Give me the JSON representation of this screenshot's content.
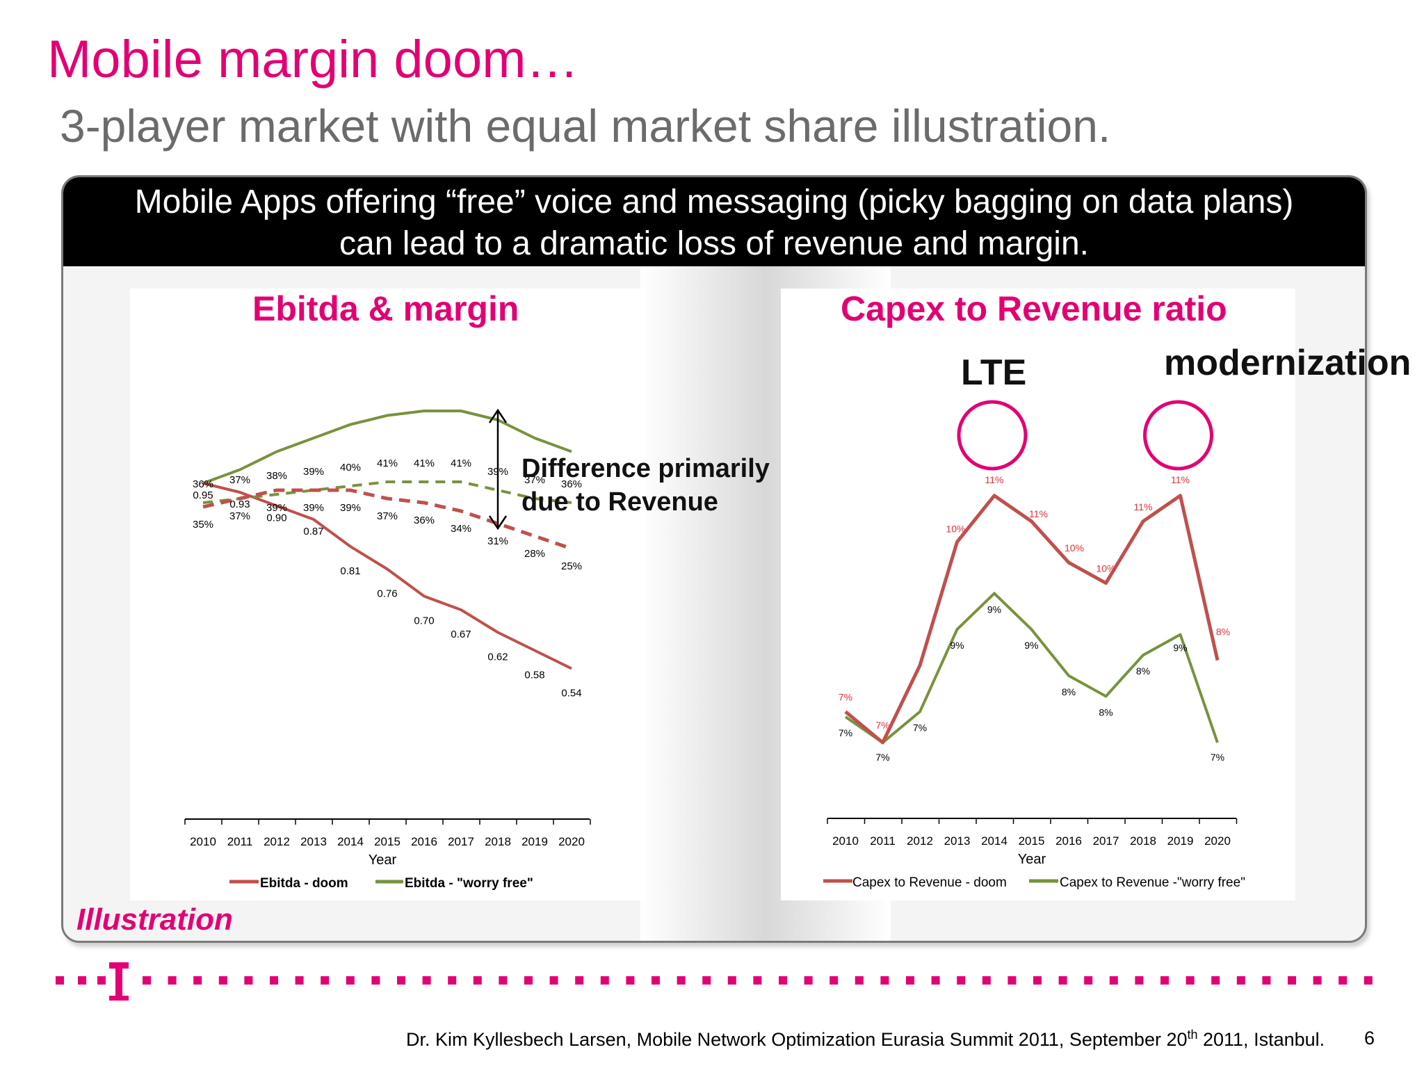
{
  "slide": {
    "title": "Mobile margin doom…",
    "subtitle": "3-player market with equal market share illustration.",
    "banner_line1": "Mobile Apps offering “free” voice and messaging (picky bagging on data plans)",
    "banner_line2": "can lead to a dramatic loss of revenue and margin.",
    "illustration_label": "Illustration",
    "footer": "Dr. Kim Kyllesbech Larsen, Mobile Network Optimization Eurasia Summit 2011, September 20th 2011, Istanbul.",
    "page_number": "6",
    "callout_line1": "Difference primarily",
    "callout_line2": "due to Revenue",
    "annotation_lte": "LTE",
    "annotation_modernization": "modernization",
    "brand_color": "#e20074"
  },
  "chart_data": [
    {
      "type": "line",
      "title": "Ebitda & margin",
      "xlabel": "Year",
      "x": [
        "2010",
        "2011",
        "2012",
        "2013",
        "2014",
        "2015",
        "2016",
        "2017",
        "2018",
        "2019",
        "2020"
      ],
      "series": [
        {
          "name": "Ebitda - doom",
          "color": "#c0504d",
          "values": [
            0.95,
            0.93,
            0.9,
            0.87,
            0.81,
            0.76,
            0.7,
            0.67,
            0.62,
            0.58,
            0.54
          ]
        },
        {
          "name": "Ebitda - \"worry free\"",
          "color": "#77933c",
          "values": [
            0.95,
            0.98,
            1.02,
            1.05,
            1.08,
            1.1,
            1.11,
            1.11,
            1.09,
            1.05,
            1.02
          ]
        },
        {
          "name": "margin - doom",
          "color": "#c0504d",
          "dashed": true,
          "values_pct": [
            35,
            37,
            39,
            39,
            39,
            37,
            36,
            34,
            31,
            28,
            25
          ]
        },
        {
          "name": "margin - \"worry free\"",
          "color": "#77933c",
          "dashed": true,
          "values_pct": [
            36,
            37,
            38,
            39,
            40,
            41,
            41,
            41,
            39,
            37,
            36
          ]
        }
      ],
      "doom_value_labels": [
        "0.95",
        "0.93",
        "0.90",
        "0.87",
        "0.81",
        "0.76",
        "0.70",
        "0.67",
        "0.62",
        "0.58",
        "0.54"
      ],
      "margin_doom_labels": [
        "35%",
        "37%",
        "39%",
        "39%",
        "39%",
        "37%",
        "36%",
        "34%",
        "31%",
        "28%",
        "25%"
      ],
      "margin_worry_labels": [
        "36%",
        "37%",
        "38%",
        "39%",
        "40%",
        "41%",
        "41%",
        "41%",
        "39%",
        "37%",
        "36%"
      ],
      "legend": [
        "Ebitda - doom",
        "Ebitda - \"worry free\""
      ],
      "legend_position": "bottom"
    },
    {
      "type": "line",
      "title": "Capex to Revenue ratio",
      "xlabel": "Year",
      "x": [
        "2010",
        "2011",
        "2012",
        "2013",
        "2014",
        "2015",
        "2016",
        "2017",
        "2018",
        "2019",
        "2020"
      ],
      "series": [
        {
          "name": "Capex to Revenue - doom",
          "color": "#c0504d",
          "values": [
            7.2,
            6.6,
            8.1,
            10.5,
            11.4,
            10.9,
            10.1,
            9.7,
            10.9,
            11.4,
            8.2
          ],
          "labels": [
            "7%",
            "7%",
            "",
            "10%",
            "11%",
            "11%",
            "10%",
            "10%",
            "11%",
            "11%",
            "8%"
          ]
        },
        {
          "name": "Capex to Revenue -\"worry free\"",
          "color": "#77933c",
          "values": [
            7.1,
            6.6,
            7.2,
            8.8,
            9.5,
            8.8,
            7.9,
            7.5,
            8.3,
            8.7,
            6.6
          ],
          "labels": [
            "7%",
            "7%",
            "7%",
            "9%",
            "9%",
            "9%",
            "8%",
            "8%",
            "8%",
            "9%",
            "7%"
          ]
        }
      ],
      "legend": [
        "Capex to Revenue - doom",
        "Capex to Revenue -\"worry free\""
      ],
      "legend_position": "bottom",
      "highlighted_years": [
        "2014",
        "2019"
      ]
    }
  ]
}
